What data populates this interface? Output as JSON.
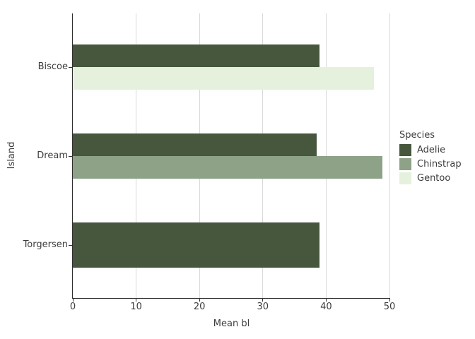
{
  "colors": {
    "background": "#ffffff",
    "gridline": "#d9d9d9",
    "axis_line": "#2f2f2f",
    "text": "#3c3c3c"
  },
  "chart_data": {
    "type": "bar",
    "orientation": "horizontal",
    "title": "",
    "xlabel": "Mean bl",
    "ylabel": "Island",
    "xlim": [
      0,
      50
    ],
    "xticks": [
      0,
      10,
      20,
      30,
      40,
      50
    ],
    "categories": [
      "Biscoe",
      "Dream",
      "Torgersen"
    ],
    "grid": "vertical major gridlines only",
    "legend": {
      "title": "Species",
      "position": "right"
    },
    "series": [
      {
        "name": "Adelie",
        "color": "#46573e",
        "values": [
          38.98,
          38.5,
          38.95
        ]
      },
      {
        "name": "Chinstrap",
        "color": "#8da287",
        "values": [
          null,
          48.83,
          null
        ]
      },
      {
        "name": "Gentoo",
        "color": "#e5f1dc",
        "values": [
          47.5,
          null,
          null
        ]
      }
    ]
  }
}
